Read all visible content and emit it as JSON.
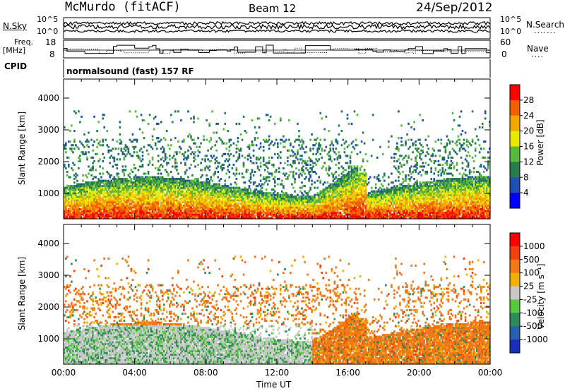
{
  "header": {
    "station": "McMurdo (fitACF)",
    "beam": "Beam 12",
    "date": "24/Sep/2012"
  },
  "top_panels": {
    "nsky_label": "N.Sky",
    "nsearch_label": "N.Search",
    "nsky_ticks": [
      "10^5",
      "10^0"
    ],
    "nsearch_ticks": [
      "10^5",
      "10^0"
    ],
    "freq_label": "Freq.",
    "freq_unit": "[MHz]",
    "freq_ticks": [
      "18",
      "8"
    ],
    "nave_label": "Nave",
    "nave_ticks": [
      "60",
      "0"
    ],
    "cpid_label": "CPID",
    "cpid_value": "normalsound (fast) 157 RF"
  },
  "chart_data": [
    {
      "type": "heatmap",
      "ylabel": "Slant Range [km]",
      "yticks": [
        "1000",
        "2000",
        "3000",
        "4000"
      ],
      "ylim": [
        200,
        4600
      ],
      "xlim": [
        0,
        24
      ],
      "colorbar": {
        "label": "Power [dB]",
        "ticks": [
          "4",
          "8",
          "12",
          "16",
          "20",
          "24",
          "28"
        ],
        "colors": [
          "#0000ff",
          "#1f4fb0",
          "#2a7a50",
          "#58b840",
          "#e8e800",
          "#f0a800",
          "#f06000",
          "#ff0000"
        ]
      }
    },
    {
      "type": "heatmap",
      "ylabel": "Slant Range [km]",
      "yticks": [
        "1000",
        "2000",
        "3000",
        "4000"
      ],
      "ylim": [
        200,
        4600
      ],
      "xlim": [
        0,
        24
      ],
      "xlabel": "Time UT",
      "xticks": [
        "00:00",
        "04:00",
        "08:00",
        "12:00",
        "16:00",
        "20:00",
        "00:00"
      ],
      "colorbar": {
        "label": "Velocity [m s⁻¹]",
        "ticks": [
          "1000",
          "500",
          "100",
          "25",
          "-25",
          "-100",
          "-500",
          "-1000"
        ],
        "colors": [
          "#1a2fb8",
          "#2a5faa",
          "#2e8a58",
          "#58c840",
          "#c8c8c8",
          "#f0b000",
          "#f07818",
          "#f04010",
          "#ff0000"
        ]
      }
    }
  ]
}
